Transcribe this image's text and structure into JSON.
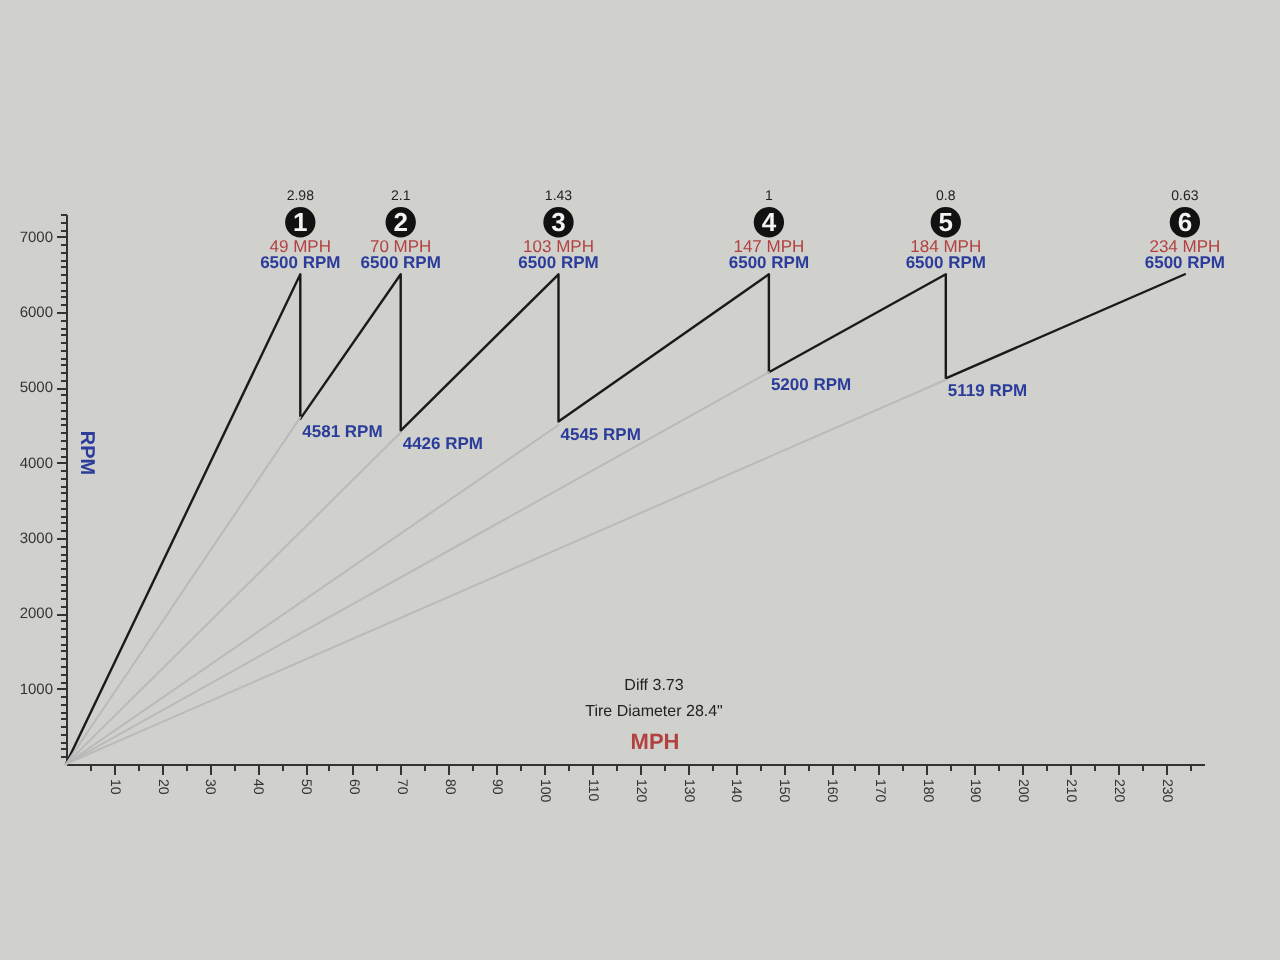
{
  "chart_data": {
    "type": "line",
    "xlabel": "MPH",
    "ylabel": "RPM",
    "xlim": [
      0,
      238
    ],
    "ylim": [
      0,
      7300
    ],
    "xticks": [
      {
        "value": 5,
        "label": null
      },
      10,
      {
        "value": 15,
        "label": null
      },
      20,
      {
        "value": 25,
        "label": null
      },
      30,
      {
        "value": 35,
        "label": null
      },
      40,
      {
        "value": 45,
        "label": null
      },
      50,
      {
        "value": 55,
        "label": null
      },
      60,
      {
        "value": 65,
        "label": null
      },
      70,
      {
        "value": 75,
        "label": null
      },
      80,
      {
        "value": 85,
        "label": null
      },
      90,
      {
        "value": 95,
        "label": null
      },
      100,
      {
        "value": 105,
        "label": null
      },
      110,
      {
        "value": 115,
        "label": null
      },
      120,
      {
        "value": 125,
        "label": null
      },
      130,
      {
        "value": 135,
        "label": null
      },
      140,
      {
        "value": 145,
        "label": null
      },
      150,
      {
        "value": 155,
        "label": null
      },
      160,
      {
        "value": 165,
        "label": null
      },
      170,
      {
        "value": 175,
        "label": null
      },
      180,
      {
        "value": 185,
        "label": null
      },
      190,
      {
        "value": 195,
        "label": null
      },
      200,
      {
        "value": 205,
        "label": null
      },
      210,
      {
        "value": 215,
        "label": null
      },
      220,
      {
        "value": 225,
        "label": null
      },
      230,
      {
        "value": 235,
        "label": null
      }
    ],
    "yticks": [
      {
        "value": 100,
        "label": null
      },
      {
        "value": 200,
        "label": null
      },
      {
        "value": 300,
        "label": null
      },
      {
        "value": 400,
        "label": null
      },
      {
        "value": 500,
        "label": null
      },
      {
        "value": 600,
        "label": null
      },
      {
        "value": 700,
        "label": null
      },
      {
        "value": 800,
        "label": null
      },
      {
        "value": 900,
        "label": null
      },
      1000,
      {
        "value": 1100,
        "label": null
      },
      {
        "value": 1200,
        "label": null
      },
      {
        "value": 1300,
        "label": null
      },
      {
        "value": 1400,
        "label": null
      },
      {
        "value": 1500,
        "label": null
      },
      {
        "value": 1600,
        "label": null
      },
      {
        "value": 1700,
        "label": null
      },
      {
        "value": 1800,
        "label": null
      },
      {
        "value": 1900,
        "label": null
      },
      2000,
      {
        "value": 2100,
        "label": null
      },
      {
        "value": 2200,
        "label": null
      },
      {
        "value": 2300,
        "label": null
      },
      {
        "value": 2400,
        "label": null
      },
      {
        "value": 2500,
        "label": null
      },
      {
        "value": 2600,
        "label": null
      },
      {
        "value": 2700,
        "label": null
      },
      {
        "value": 2800,
        "label": null
      },
      {
        "value": 2900,
        "label": null
      },
      3000,
      {
        "value": 3100,
        "label": null
      },
      {
        "value": 3200,
        "label": null
      },
      {
        "value": 3300,
        "label": null
      },
      {
        "value": 3400,
        "label": null
      },
      {
        "value": 3500,
        "label": null
      },
      {
        "value": 3600,
        "label": null
      },
      {
        "value": 3700,
        "label": null
      },
      {
        "value": 3800,
        "label": null
      },
      {
        "value": 3900,
        "label": null
      },
      4000,
      {
        "value": 4100,
        "label": null
      },
      {
        "value": 4200,
        "label": null
      },
      {
        "value": 4300,
        "label": null
      },
      {
        "value": 4400,
        "label": null
      },
      {
        "value": 4500,
        "label": null
      },
      {
        "value": 4600,
        "label": null
      },
      {
        "value": 4700,
        "label": null
      },
      {
        "value": 4800,
        "label": null
      },
      {
        "value": 4900,
        "label": null
      },
      5000,
      {
        "value": 5100,
        "label": null
      },
      {
        "value": 5200,
        "label": null
      },
      {
        "value": 5300,
        "label": null
      },
      {
        "value": 5400,
        "label": null
      },
      {
        "value": 5500,
        "label": null
      },
      {
        "value": 5600,
        "label": null
      },
      {
        "value": 5700,
        "label": null
      },
      {
        "value": 5800,
        "label": null
      },
      {
        "value": 5900,
        "label": null
      },
      6000,
      {
        "value": 6100,
        "label": null
      },
      {
        "value": 6200,
        "label": null
      },
      {
        "value": 6300,
        "label": null
      },
      {
        "value": 6400,
        "label": null
      },
      {
        "value": 6500,
        "label": null
      },
      {
        "value": 6600,
        "label": null
      },
      {
        "value": 6700,
        "label": null
      },
      {
        "value": 6800,
        "label": null
      },
      {
        "value": 6900,
        "label": null
      },
      7000,
      {
        "value": 7100,
        "label": null
      },
      {
        "value": 7200,
        "label": null
      },
      {
        "value": 7300,
        "label": null
      }
    ],
    "series": [
      {
        "color": "#1a1a1a",
        "x": [
          0,
          49,
          49,
          70,
          70,
          103,
          103,
          147,
          147,
          184,
          184,
          234
        ],
        "values": [
          0,
          6500,
          4581,
          6500,
          4426,
          6500,
          4545,
          6500,
          5200,
          6500,
          5119,
          6500
        ],
        "value_labels": [
          null,
          "6500 RPM",
          "4581 RPM",
          "6500 RPM",
          "4426 RPM",
          "6500 RPM",
          "4545 RPM",
          "6500 RPM",
          "5200 RPM",
          "6500 RPM",
          "5119 RPM",
          "6500 RPM"
        ]
      },
      {
        "color": "#bababa",
        "x": [
          0,
          49
        ],
        "values": [
          0,
          4600
        ]
      },
      {
        "color": "#bababa",
        "x": [
          0,
          70
        ],
        "values": [
          0,
          4400
        ]
      },
      {
        "color": "#bababa",
        "x": [
          0,
          103
        ],
        "values": [
          0,
          4500
        ]
      },
      {
        "color": "#bababa",
        "x": [
          0,
          147
        ],
        "values": [
          0,
          5200
        ]
      },
      {
        "color": "#bababa",
        "x": [
          0,
          184
        ],
        "values": [
          0,
          5100
        ]
      }
    ],
    "annotations": [
      {
        "text": "1",
        "x": 49,
        "y": 6500
      },
      {
        "text": "49 MPH",
        "x": 49,
        "y": 6500
      },
      {
        "text": "2",
        "x": 70,
        "y": 6500
      },
      {
        "text": "70 MPH",
        "x": 70,
        "y": 6500
      },
      {
        "text": "3",
        "x": 103,
        "y": 6500
      },
      {
        "text": "103 MPH",
        "x": 103,
        "y": 6500
      },
      {
        "text": "4",
        "x": 147,
        "y": 6500
      },
      {
        "text": "147 MPH",
        "x": 147,
        "y": 6500
      },
      {
        "text": "5",
        "x": 184,
        "y": 6500
      },
      {
        "text": "184 MPH",
        "x": 184,
        "y": 6500
      },
      {
        "text": "6",
        "x": 234,
        "y": 6500
      },
      {
        "text": "234 MPH",
        "x": 234,
        "y": 6500
      },
      "2.98",
      "2.1",
      "1.43",
      "1",
      "0.8",
      "0.63",
      "Diff 3.73",
      "Tire Diameter 28.4\""
    ]
  }
}
